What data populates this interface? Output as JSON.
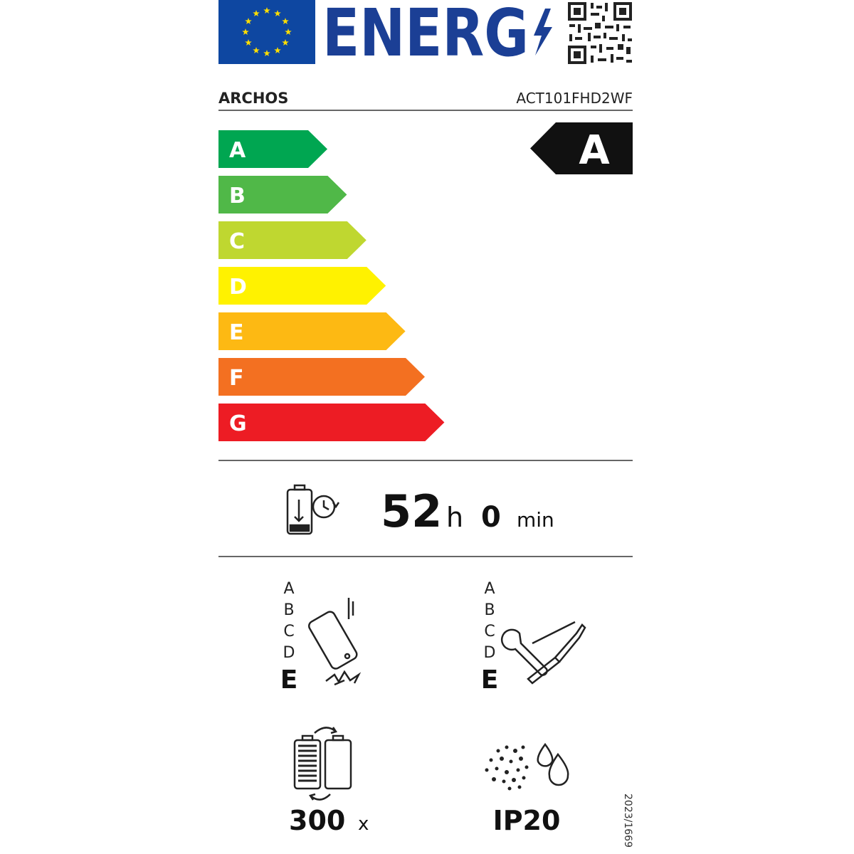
{
  "header": {
    "title": "ENERG"
  },
  "supplier": "ARCHOS",
  "model": "ACT101FHD2WF",
  "energy_classes": [
    {
      "label": "A",
      "color": "#00a651"
    },
    {
      "label": "B",
      "color": "#50b848"
    },
    {
      "label": "C",
      "color": "#bfd730"
    },
    {
      "label": "D",
      "color": "#fff200"
    },
    {
      "label": "E",
      "color": "#fdb913"
    },
    {
      "label": "F",
      "color": "#f37021"
    },
    {
      "label": "G",
      "color": "#ed1c24"
    }
  ],
  "rated_class": "A",
  "battery_endurance": {
    "hours": 52,
    "hours_unit": "h",
    "minutes": 0,
    "minutes_unit": "min"
  },
  "drop_resistance": {
    "scale": [
      "A",
      "B",
      "C",
      "D"
    ],
    "class": "E"
  },
  "repairability": {
    "scale": [
      "A",
      "B",
      "C",
      "D"
    ],
    "class": "E"
  },
  "battery_cycles": {
    "value": 300,
    "unit": "x"
  },
  "ingress_protection": "IP20",
  "regulation": "2023/1669"
}
